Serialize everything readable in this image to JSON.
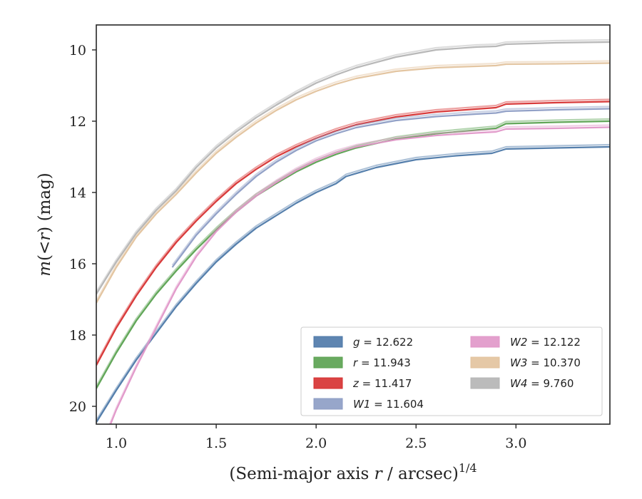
{
  "chart_data": {
    "type": "line",
    "xlabel": "(Semi-major axis",
    "xlabel_var": "r",
    "xlabel_tail": "/ arcsec)",
    "xlabel_exp": "1/4",
    "ylabel_prefix": "m(<",
    "ylabel_var": "r",
    "ylabel_suffix": ") (mag)",
    "xlim": [
      0.9,
      3.47
    ],
    "ylim": [
      20.5,
      9.3
    ],
    "y_inverted": true,
    "xticks": [
      1.0,
      1.5,
      2.0,
      2.5,
      3.0
    ],
    "xtick_labels": [
      "1.0",
      "1.5",
      "2.0",
      "2.5",
      "3.0"
    ],
    "yticks": [
      10,
      12,
      14,
      16,
      18,
      20
    ],
    "ytick_labels": [
      "10",
      "12",
      "14",
      "16",
      "18",
      "20"
    ],
    "grid": false,
    "legend_position": "lower-right",
    "series": [
      {
        "name": "g = 12.622",
        "label_var": "g",
        "label_value": "= 12.622",
        "color": "#4c78a8",
        "x": [
          0.9,
          1.0,
          1.1,
          1.2,
          1.3,
          1.4,
          1.5,
          1.6,
          1.7,
          1.8,
          1.9,
          2.0,
          2.1,
          2.15,
          2.3,
          2.5,
          2.7,
          2.88,
          2.95,
          3.2,
          3.47
        ],
        "y": [
          20.45,
          19.55,
          18.7,
          17.95,
          17.2,
          16.55,
          15.95,
          15.45,
          15.0,
          14.65,
          14.3,
          14.0,
          13.75,
          13.55,
          13.3,
          13.08,
          12.97,
          12.9,
          12.78,
          12.75,
          12.72
        ]
      },
      {
        "name": "r = 11.943",
        "label_var": "r",
        "label_value": "= 11.943",
        "color": "#59a14f",
        "x": [
          0.9,
          1.0,
          1.1,
          1.2,
          1.3,
          1.4,
          1.5,
          1.6,
          1.7,
          1.8,
          1.9,
          2.0,
          2.1,
          2.2,
          2.4,
          2.6,
          2.8,
          2.9,
          2.95,
          3.2,
          3.47
        ],
        "y": [
          19.5,
          18.5,
          17.6,
          16.85,
          16.2,
          15.6,
          15.05,
          14.55,
          14.1,
          13.75,
          13.42,
          13.15,
          12.93,
          12.75,
          12.5,
          12.35,
          12.25,
          12.2,
          12.07,
          12.03,
          12.0
        ]
      },
      {
        "name": "z = 11.417",
        "label_var": "z",
        "label_value": "= 11.417",
        "color": "#d62f2f",
        "x": [
          0.9,
          1.0,
          1.1,
          1.2,
          1.3,
          1.4,
          1.5,
          1.6,
          1.7,
          1.8,
          1.9,
          2.0,
          2.1,
          2.2,
          2.4,
          2.6,
          2.8,
          2.9,
          2.95,
          3.2,
          3.47
        ],
        "y": [
          18.85,
          17.8,
          16.9,
          16.1,
          15.4,
          14.8,
          14.25,
          13.75,
          13.35,
          13.0,
          12.72,
          12.48,
          12.27,
          12.1,
          11.88,
          11.74,
          11.66,
          11.62,
          11.52,
          11.48,
          11.45
        ]
      },
      {
        "name": "W1 = 11.604",
        "label_var": "W1",
        "label_value": "= 11.604",
        "color": "#8c9cc4",
        "x": [
          1.28,
          1.4,
          1.5,
          1.6,
          1.7,
          1.8,
          1.9,
          2.0,
          2.1,
          2.2,
          2.4,
          2.6,
          2.8,
          2.9,
          2.95,
          3.2,
          3.47
        ],
        "y": [
          16.1,
          15.2,
          14.6,
          14.05,
          13.55,
          13.15,
          12.82,
          12.55,
          12.35,
          12.18,
          11.98,
          11.87,
          11.8,
          11.77,
          11.72,
          11.68,
          11.65
        ]
      },
      {
        "name": "W2 = 12.122",
        "label_var": "W2",
        "label_value": "= 12.122",
        "color": "#e096c8",
        "x": [
          0.9,
          1.0,
          1.1,
          1.2,
          1.3,
          1.4,
          1.5,
          1.6,
          1.7,
          1.8,
          1.9,
          2.0,
          2.1,
          2.2,
          2.4,
          2.6,
          2.8,
          2.9,
          2.95,
          3.2,
          3.47
        ],
        "y": [
          21.5,
          20.1,
          18.9,
          17.8,
          16.7,
          15.8,
          15.1,
          14.55,
          14.1,
          13.72,
          13.38,
          13.1,
          12.88,
          12.72,
          12.52,
          12.4,
          12.33,
          12.3,
          12.22,
          12.2,
          12.17
        ]
      },
      {
        "name": "W3 = 10.370",
        "label_var": "W3",
        "label_value": "= 10.370",
        "color": "#e2c29c",
        "x": [
          0.9,
          1.0,
          1.1,
          1.2,
          1.3,
          1.4,
          1.5,
          1.6,
          1.7,
          1.8,
          1.9,
          2.0,
          2.1,
          2.2,
          2.4,
          2.6,
          2.8,
          2.9,
          2.95,
          3.2,
          3.47
        ],
        "y": [
          17.1,
          16.1,
          15.25,
          14.6,
          14.05,
          13.45,
          12.9,
          12.45,
          12.05,
          11.7,
          11.4,
          11.16,
          10.96,
          10.8,
          10.6,
          10.5,
          10.46,
          10.44,
          10.4,
          10.39,
          10.37
        ]
      },
      {
        "name": "W4 = 9.760",
        "label_var": "W4",
        "label_value": "= 9.760",
        "color": "#b4b4b4",
        "x": [
          0.9,
          1.0,
          1.1,
          1.2,
          1.3,
          1.4,
          1.5,
          1.6,
          1.7,
          1.8,
          1.9,
          2.0,
          2.1,
          2.2,
          2.4,
          2.6,
          2.8,
          2.9,
          2.95,
          3.2,
          3.47
        ],
        "y": [
          16.85,
          15.95,
          15.15,
          14.5,
          13.95,
          13.3,
          12.75,
          12.3,
          11.9,
          11.55,
          11.22,
          10.93,
          10.7,
          10.5,
          10.2,
          10.0,
          9.92,
          9.9,
          9.84,
          9.8,
          9.78
        ]
      }
    ]
  }
}
